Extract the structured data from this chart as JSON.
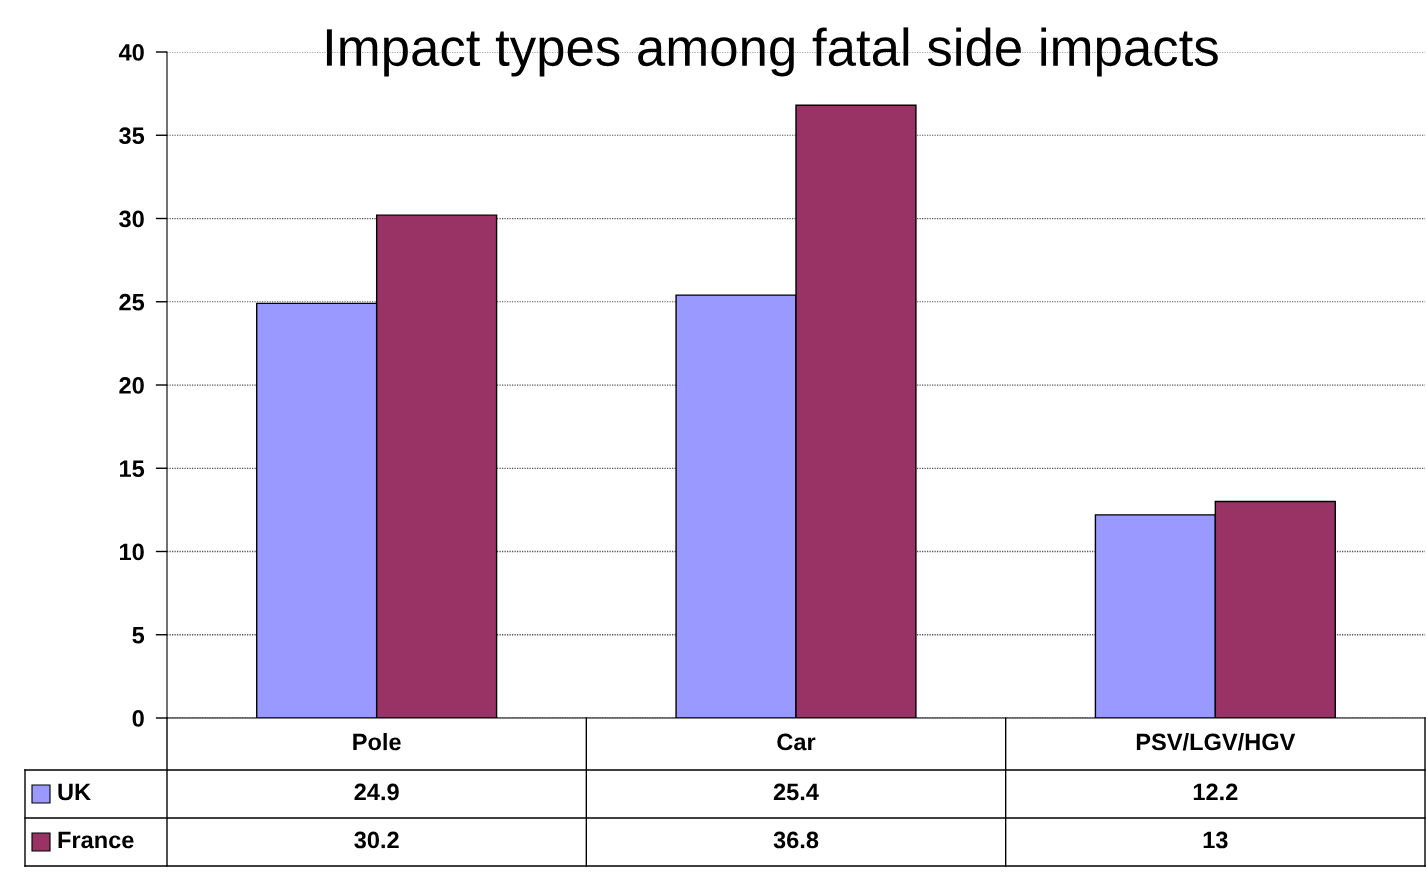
{
  "chart_data": {
    "type": "bar",
    "title": "Impact types among fatal side impacts",
    "categories": [
      "Pole",
      "Car",
      "PSV/LGV/HGV"
    ],
    "series": [
      {
        "name": "UK",
        "color": "#9999ff",
        "values": [
          24.9,
          25.4,
          12.2
        ]
      },
      {
        "name": "France",
        "color": "#993366",
        "values": [
          30.2,
          36.8,
          13
        ]
      }
    ],
    "ylim": [
      0,
      40
    ],
    "yticks": [
      0,
      5,
      10,
      15,
      20,
      25,
      30,
      35,
      40
    ],
    "grid": "y",
    "data_labels": true,
    "legend": "bottom"
  }
}
